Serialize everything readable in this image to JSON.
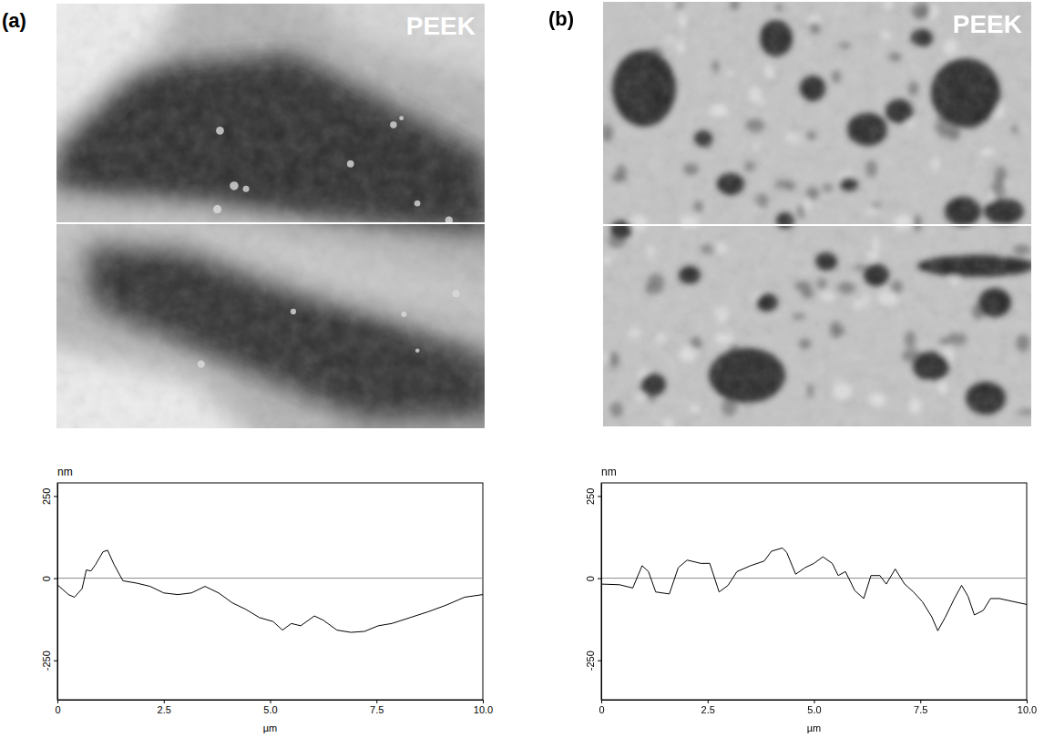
{
  "chart_data": [
    {
      "type": "line",
      "panel_label": "(a)",
      "title": "PEEK",
      "x_label": "µm",
      "y_label": "nm",
      "x": [
        0,
        0.26,
        0.4,
        0.58,
        0.68,
        0.79,
        0.9,
        1.07,
        1.18,
        1.33,
        1.54,
        1.86,
        2.18,
        2.5,
        2.83,
        3.15,
        3.47,
        3.79,
        4.11,
        4.43,
        4.75,
        5.07,
        5.29,
        5.5,
        5.72,
        6.04,
        6.25,
        6.57,
        6.9,
        7.22,
        7.54,
        7.86,
        8.29,
        8.72,
        9.14,
        9.57,
        10
      ],
      "values": [
        -20,
        -50,
        -58,
        -32,
        25,
        22,
        42,
        80,
        85,
        42,
        -8,
        -15,
        -25,
        -45,
        -50,
        -45,
        -25,
        -45,
        -75,
        -95,
        -120,
        -132,
        -158,
        -138,
        -145,
        -115,
        -128,
        -158,
        -165,
        -162,
        -145,
        -138,
        -120,
        -102,
        -82,
        -58,
        -50
      ],
      "color": "#000000",
      "xlim": [
        0,
        10
      ],
      "xticks": [
        0,
        2.5,
        {
          "value": 5,
          "label": "5.0"
        },
        7.5,
        {
          "value": 10,
          "label": "10.0"
        }
      ],
      "ylim": [
        -370,
        290
      ],
      "yticks": [
        -250,
        0,
        250
      ],
      "hline": 0
    },
    {
      "type": "line",
      "panel_label": "(b)",
      "title": "PEEK",
      "x_label": "µm",
      "y_label": "nm",
      "x": [
        0,
        0.43,
        0.74,
        0.96,
        1.11,
        1.28,
        1.6,
        1.81,
        2.02,
        2.34,
        2.55,
        2.77,
        2.98,
        3.19,
        3.51,
        3.83,
        4.0,
        4.26,
        4.36,
        4.57,
        4.79,
        5.0,
        5.21,
        5.43,
        5.57,
        5.74,
        5.96,
        6.17,
        6.34,
        6.55,
        6.7,
        6.91,
        7.13,
        7.34,
        7.55,
        7.77,
        7.91,
        8.09,
        8.3,
        8.47,
        8.62,
        8.77,
        8.98,
        9.15,
        9.36,
        9.57,
        10
      ],
      "values": [
        -18,
        -20,
        -30,
        38,
        20,
        -42,
        -48,
        32,
        55,
        45,
        45,
        -42,
        -22,
        20,
        38,
        52,
        82,
        92,
        78,
        12,
        32,
        45,
        65,
        45,
        8,
        20,
        -38,
        -62,
        8,
        8,
        -18,
        28,
        -18,
        -42,
        -72,
        -118,
        -160,
        -118,
        -62,
        -22,
        -55,
        -112,
        -98,
        -62,
        -62,
        -68,
        -80
      ],
      "color": "#000000",
      "xlim": [
        0,
        10
      ],
      "xticks": [
        0,
        2.5,
        {
          "value": 5,
          "label": "5.0"
        },
        7.5,
        {
          "value": 10,
          "label": "10.0"
        }
      ],
      "ylim": [
        -370,
        290
      ],
      "yticks": [
        -250,
        0,
        250
      ],
      "hline": 0
    }
  ]
}
